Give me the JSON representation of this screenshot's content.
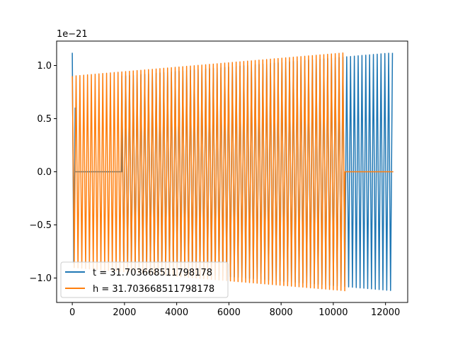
{
  "chart_data": {
    "type": "line",
    "offset_text": "1e−21",
    "scale": 1e-21,
    "xlim": [
      -600,
      12850
    ],
    "ylim": [
      -1.23,
      1.23
    ],
    "xticks": [
      {
        "value": 0,
        "label": "0"
      },
      {
        "value": 2000,
        "label": "2000"
      },
      {
        "value": 4000,
        "label": "4000"
      },
      {
        "value": 6000,
        "label": "6000"
      },
      {
        "value": 8000,
        "label": "8000"
      },
      {
        "value": 10000,
        "label": "10000"
      },
      {
        "value": 12000,
        "label": "12000"
      }
    ],
    "yticks": [
      {
        "value": -1.0,
        "label": "−1.0"
      },
      {
        "value": -0.5,
        "label": "−0.5"
      },
      {
        "value": 0.0,
        "label": "0.0"
      },
      {
        "value": 0.5,
        "label": "0.5"
      },
      {
        "value": 1.0,
        "label": "1.0"
      }
    ],
    "legend_position": "lower left",
    "series": [
      {
        "name": "t = 31.703668511798178",
        "color": "#1f77b4",
        "segments": [
          {
            "kind": "oscillation",
            "x_start": 0,
            "x_end": 110,
            "amp_start": 1.12,
            "amp_end": 0.6,
            "period": 110
          },
          {
            "kind": "flat",
            "x_start": 110,
            "x_end": 1900,
            "y": 0.0
          },
          {
            "kind": "oscillation",
            "x_start": 1900,
            "x_end": 12300,
            "amp_start": 0.9,
            "amp_end": 1.12,
            "period": 146
          }
        ]
      },
      {
        "name": "h = 31.703668511798178",
        "color": "#ff7f0e",
        "segments": [
          {
            "kind": "oscillation",
            "x_start": 0,
            "x_end": 10450,
            "amp_start": 0.9,
            "amp_end": 1.12,
            "period": 146
          },
          {
            "kind": "flat",
            "x_start": 10450,
            "x_end": 12300,
            "y": 0.0
          }
        ]
      }
    ]
  }
}
